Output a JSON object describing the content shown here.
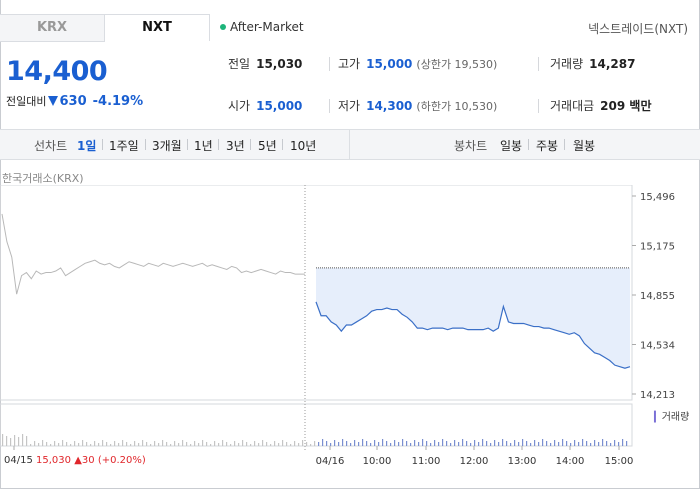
{
  "tabs": [
    {
      "label": "KRX",
      "active": false
    },
    {
      "label": "NXT",
      "active": true
    }
  ],
  "session": "After-Market",
  "market_title": "넥스트레이드(NXT)",
  "price": "14,400",
  "change": {
    "label": "전일대비",
    "amount": "630",
    "percent": "-4.19%",
    "direction": "down"
  },
  "stats": {
    "prev_close": {
      "label": "전일",
      "value": "15,030"
    },
    "high": {
      "label": "고가",
      "value": "15,000",
      "sub": "(상한가 19,530)"
    },
    "volume": {
      "label": "거래량",
      "value": "14,287"
    },
    "open": {
      "label": "시가",
      "value": "15,000"
    },
    "low": {
      "label": "저가",
      "value": "14,300",
      "sub": "(하한가 10,530)"
    },
    "amount": {
      "label": "거래대금",
      "value": "209 백만"
    }
  },
  "period_bar": {
    "line_label": "선차트",
    "line_items": [
      "1일",
      "1주일",
      "3개월",
      "1년",
      "3년",
      "5년",
      "10년"
    ],
    "active": "1일",
    "candle_label": "봉차트",
    "candle_items": [
      "일봉",
      "주봉",
      "월봉"
    ]
  },
  "source_label": "한국거래소(KRX)",
  "colors": {
    "up": "#e0262b",
    "down": "#1a5fd1",
    "krx_line": "#b8b8b8",
    "nxt_line": "#3a6fc7",
    "nxt_fill": "#e6eefb"
  },
  "chart_data": {
    "type": "line",
    "y_ticks": [
      "15,496",
      "15,175",
      "14,855",
      "14,534",
      "14,213"
    ],
    "ylim": [
      14213,
      15496
    ],
    "x_ticks": [
      "04/15",
      "04/16",
      "10:00",
      "11:00",
      "12:00",
      "13:00",
      "14:00",
      "15:00"
    ],
    "reference_value": 15030,
    "series": [
      {
        "session": "04/15",
        "x": [
          0,
          1,
          2,
          3,
          4,
          5,
          6,
          7,
          8,
          9,
          10,
          11,
          12,
          13,
          14,
          15,
          16,
          17,
          18,
          19,
          20,
          21,
          22,
          23,
          24,
          25,
          26,
          27,
          28,
          29,
          30,
          31,
          32,
          33,
          34,
          35,
          36,
          37,
          38,
          39,
          40,
          41,
          42,
          43,
          44,
          45,
          46,
          47,
          48,
          49,
          50,
          51,
          52,
          53,
          54,
          55,
          56,
          57,
          58,
          59,
          60,
          61,
          62
        ],
        "values": [
          15380,
          15200,
          15100,
          14860,
          14980,
          15000,
          14960,
          15010,
          14990,
          15000,
          15000,
          15010,
          15030,
          14980,
          15000,
          15020,
          15040,
          15060,
          15070,
          15080,
          15060,
          15050,
          15060,
          15040,
          15030,
          15050,
          15070,
          15060,
          15050,
          15040,
          15060,
          15050,
          15040,
          15060,
          15050,
          15040,
          15050,
          15060,
          15050,
          15040,
          15050,
          15060,
          15040,
          15050,
          15040,
          15030,
          15020,
          15040,
          15030,
          15000,
          15010,
          15000,
          15010,
          15020,
          15010,
          15000,
          14990,
          15010,
          15000,
          15000,
          14990,
          14990,
          14990
        ]
      },
      {
        "session": "04/16",
        "x": [
          0,
          1,
          2,
          3,
          4,
          5,
          6,
          7,
          8,
          9,
          10,
          11,
          12,
          13,
          14,
          15,
          16,
          17,
          18,
          19,
          20,
          21,
          22,
          23,
          24,
          25,
          26,
          27,
          28,
          29,
          30,
          31,
          32,
          33,
          34,
          35,
          36,
          37,
          38,
          39,
          40,
          41,
          42,
          43,
          44,
          45,
          46,
          47,
          48,
          49,
          50,
          51,
          52,
          53,
          54,
          55,
          56,
          57,
          58,
          59,
          60,
          61,
          62
        ],
        "values": [
          14810,
          14720,
          14720,
          14680,
          14660,
          14620,
          14660,
          14660,
          14680,
          14700,
          14720,
          14750,
          14760,
          14760,
          14770,
          14760,
          14760,
          14730,
          14710,
          14680,
          14640,
          14640,
          14630,
          14640,
          14640,
          14640,
          14630,
          14640,
          14640,
          14640,
          14630,
          14630,
          14630,
          14630,
          14640,
          14620,
          14640,
          14780,
          14680,
          14670,
          14670,
          14670,
          14660,
          14650,
          14650,
          14640,
          14640,
          14630,
          14620,
          14610,
          14600,
          14610,
          14590,
          14540,
          14510,
          14480,
          14470,
          14450,
          14430,
          14400,
          14390,
          14380,
          14390
        ]
      }
    ],
    "legend": "거래량",
    "footer": {
      "date": "04/15",
      "price": "15,030",
      "change": "30",
      "percent": "(+0.20%)"
    }
  }
}
